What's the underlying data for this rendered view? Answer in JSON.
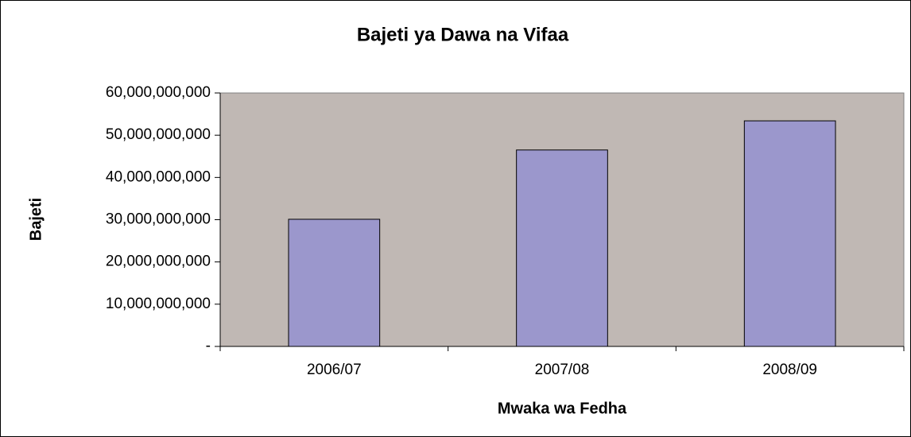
{
  "chart_data": {
    "type": "bar",
    "title": "Bajeti ya Dawa na Vifaa",
    "x_label": "Mwaka wa Fedha",
    "y_label": "Bajeti",
    "categories": [
      "2006/07",
      "2007/08",
      "2008/09"
    ],
    "values": [
      30100000000,
      46500000000,
      53400000000
    ],
    "color": "#9b97cc",
    "ylim": [
      0,
      60000000000
    ],
    "yticks": [
      {
        "value": 0,
        "label": "-"
      },
      {
        "value": 10000000000,
        "label": "10,000,000,000"
      },
      {
        "value": 20000000000,
        "label": "20,000,000,000"
      },
      {
        "value": 30000000000,
        "label": "30,000,000,000"
      },
      {
        "value": 40000000000,
        "label": "40,000,000,000"
      },
      {
        "value": 50000000000,
        "label": "50,000,000,000"
      },
      {
        "value": 60000000000,
        "label": "60,000,000,000"
      }
    ],
    "plot_background": "#c0b8b4"
  }
}
